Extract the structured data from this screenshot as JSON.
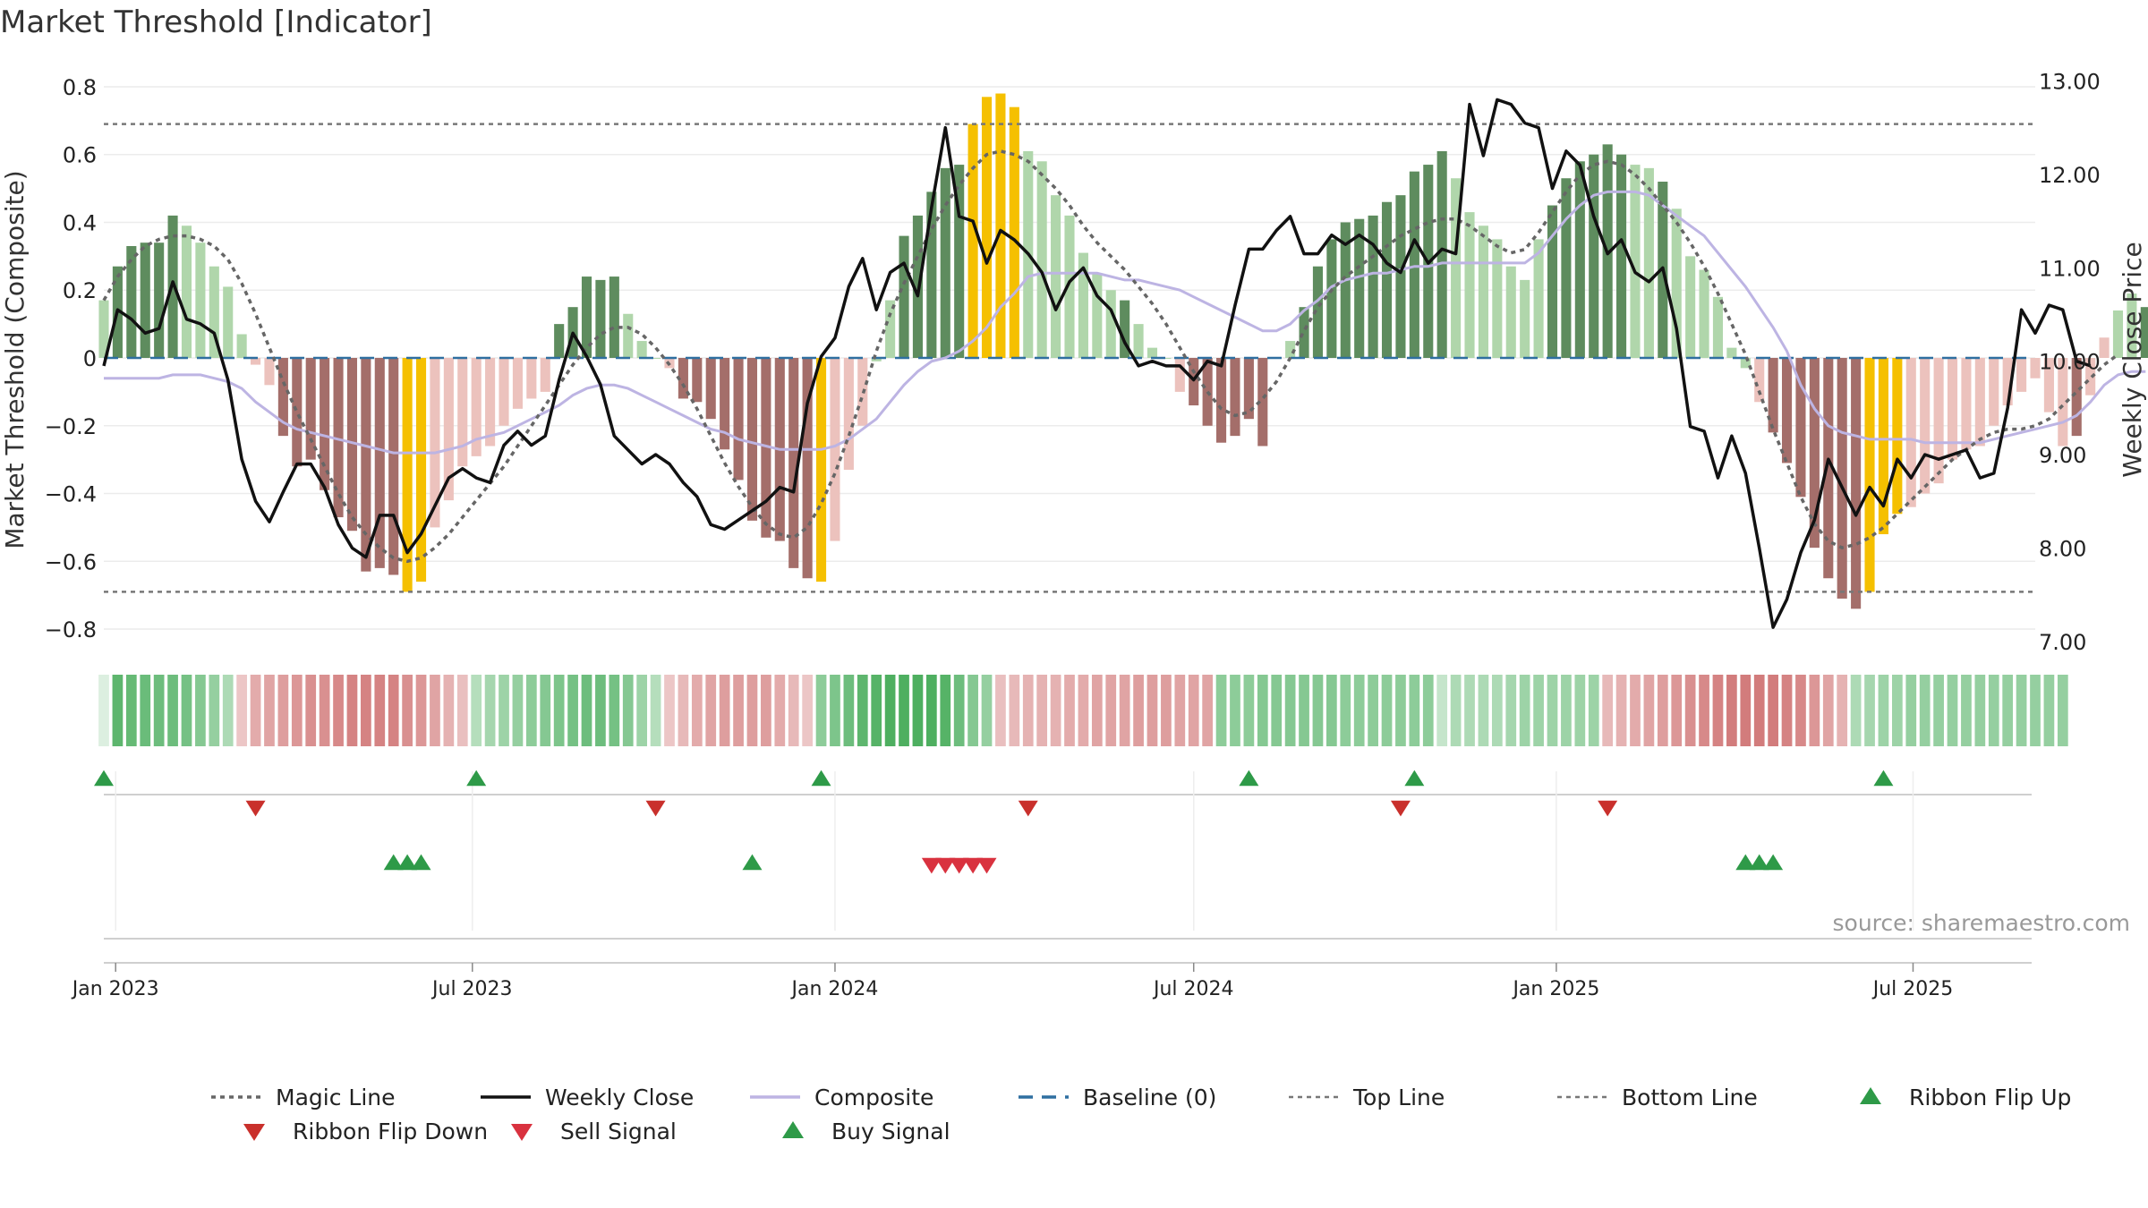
{
  "title": "Market Threshold [Indicator]",
  "source": "source: sharemaestro.com",
  "y_left_label": "Market Threshold (Composite)",
  "y_right_label": "Weekly Close Price",
  "colors": {
    "strong_up": "#5e8c5e",
    "weak_up": "#b0d6ab",
    "strong_down": "#a46e6a",
    "weak_down": "#ecc2bd",
    "extreme": "#f5c000",
    "close": "#111111",
    "composite": "#bdb4e3",
    "magic": "#666666",
    "baseline": "#2f6fa0",
    "thresholds": "#777777",
    "buy": "#2e9a48",
    "sell": "#d9323f",
    "flip_up": "#2e9a48",
    "flip_down": "#c9302c"
  },
  "chart_data": {
    "type": "bar+line",
    "x_start": "2022-12-26",
    "x_end": "2025-09-01",
    "x_ticks": [
      {
        "date": "2023-01-01",
        "label": "Jan 2023"
      },
      {
        "date": "2023-07-01",
        "label": "Jul 2023"
      },
      {
        "date": "2024-01-01",
        "label": "Jan 2024"
      },
      {
        "date": "2024-07-01",
        "label": "Jul 2024"
      },
      {
        "date": "2025-01-01",
        "label": "Jan 2025"
      },
      {
        "date": "2025-07-01",
        "label": "Jul 2025"
      }
    ],
    "y_left": {
      "min": -0.85,
      "max": 0.85,
      "ticks": [
        0.8,
        0.6,
        0.4,
        0.2,
        0,
        -0.2,
        -0.4,
        -0.6,
        -0.8
      ],
      "tick_labels": [
        "0.8",
        "0.6",
        "0.4",
        "0.2",
        "0",
        "−0.2",
        "−0.4",
        "−0.6",
        "−0.8"
      ]
    },
    "y_right": {
      "min": 6.95,
      "max": 13.12,
      "ticks": [
        13,
        12,
        11,
        10,
        9,
        8,
        7
      ],
      "tick_labels": [
        "13.00",
        "12.00",
        "11.00",
        "10.00",
        "9.00",
        "8.00",
        "7.00"
      ]
    },
    "top_line": 0.69,
    "bottom_line": -0.69,
    "baseline": 0,
    "bar_start": "2022-12-26",
    "composite": [
      0.17,
      0.27,
      0.33,
      0.34,
      0.34,
      0.42,
      0.39,
      0.34,
      0.27,
      0.21,
      0.07,
      -0.02,
      -0.08,
      -0.23,
      -0.32,
      -0.3,
      -0.39,
      -0.47,
      -0.51,
      -0.63,
      -0.62,
      -0.64,
      -0.69,
      -0.66,
      -0.5,
      -0.42,
      -0.32,
      -0.29,
      -0.26,
      -0.2,
      -0.15,
      -0.12,
      -0.1,
      0.1,
      0.15,
      0.24,
      0.23,
      0.24,
      0.13,
      0.05,
      0.0,
      -0.03,
      -0.12,
      -0.13,
      -0.18,
      -0.27,
      -0.36,
      -0.48,
      -0.53,
      -0.54,
      -0.62,
      -0.65,
      -0.66,
      -0.54,
      -0.33,
      -0.2,
      -0.01,
      0.17,
      0.36,
      0.42,
      0.49,
      0.56,
      0.57,
      0.69,
      0.77,
      0.78,
      0.74,
      0.61,
      0.58,
      0.48,
      0.42,
      0.31,
      0.25,
      0.2,
      0.17,
      0.1,
      0.03,
      0.0,
      -0.1,
      -0.14,
      -0.2,
      -0.25,
      -0.23,
      -0.18,
      -0.26,
      0.0,
      0.05,
      0.15,
      0.27,
      0.35,
      0.4,
      0.41,
      0.42,
      0.46,
      0.48,
      0.55,
      0.57,
      0.61,
      0.53,
      0.43,
      0.39,
      0.35,
      0.27,
      0.23,
      0.35,
      0.45,
      0.53,
      0.58,
      0.6,
      0.63,
      0.6,
      0.57,
      0.56,
      0.52,
      0.44,
      0.3,
      0.26,
      0.18,
      0.03,
      -0.03,
      -0.13,
      -0.22,
      -0.31,
      -0.41,
      -0.56,
      -0.65,
      -0.71,
      -0.74,
      -0.69,
      -0.52,
      -0.46,
      -0.44,
      -0.4,
      -0.37,
      -0.3,
      -0.27,
      -0.26,
      -0.2,
      -0.14,
      -0.1,
      -0.06,
      -0.16,
      -0.26,
      -0.23,
      -0.11,
      0.06,
      0.14,
      0.19,
      0.15,
      0.19
    ],
    "bar_class": [
      1,
      0,
      0,
      0,
      0,
      0,
      1,
      1,
      1,
      1,
      1,
      3,
      3,
      2,
      2,
      2,
      2,
      2,
      2,
      2,
      2,
      2,
      4,
      4,
      3,
      3,
      3,
      3,
      3,
      3,
      3,
      3,
      3,
      0,
      0,
      0,
      0,
      0,
      1,
      1,
      1,
      3,
      2,
      2,
      2,
      2,
      2,
      2,
      2,
      2,
      2,
      2,
      4,
      3,
      3,
      3,
      1,
      1,
      0,
      0,
      0,
      0,
      0,
      4,
      4,
      4,
      4,
      1,
      1,
      1,
      1,
      1,
      1,
      1,
      0,
      1,
      1,
      1,
      3,
      2,
      2,
      2,
      2,
      2,
      2,
      1,
      1,
      0,
      0,
      0,
      0,
      0,
      0,
      0,
      0,
      0,
      0,
      0,
      1,
      1,
      1,
      1,
      1,
      1,
      1,
      0,
      0,
      0,
      0,
      0,
      0,
      1,
      1,
      0,
      1,
      1,
      1,
      1,
      1,
      1,
      3,
      2,
      2,
      2,
      2,
      2,
      2,
      2,
      4,
      4,
      4,
      3,
      3,
      3,
      3,
      3,
      3,
      3,
      3,
      3,
      3,
      3,
      3,
      2,
      3,
      3,
      1,
      1,
      0,
      1,
      0
    ],
    "weekly_close": [
      9.95,
      10.55,
      10.45,
      10.3,
      10.35,
      10.85,
      10.45,
      10.4,
      10.3,
      9.8,
      8.95,
      8.5,
      8.28,
      8.6,
      8.9,
      8.9,
      8.65,
      8.25,
      8.0,
      7.9,
      8.35,
      8.35,
      7.95,
      8.15,
      8.45,
      8.75,
      8.85,
      8.75,
      8.7,
      9.1,
      9.25,
      9.1,
      9.2,
      9.8,
      10.3,
      10.05,
      9.75,
      9.2,
      9.05,
      8.9,
      9.0,
      8.9,
      8.7,
      8.55,
      8.25,
      8.2,
      8.3,
      8.4,
      8.5,
      8.65,
      8.6,
      9.55,
      10.05,
      10.25,
      10.8,
      11.1,
      10.55,
      10.95,
      11.05,
      10.7,
      11.65,
      12.5,
      11.55,
      11.5,
      11.05,
      11.4,
      11.3,
      11.15,
      10.95,
      10.55,
      10.85,
      11.0,
      10.7,
      10.55,
      10.2,
      9.95,
      10.0,
      9.95,
      9.95,
      9.8,
      10.0,
      9.95,
      10.6,
      11.2,
      11.2,
      11.4,
      11.55,
      11.15,
      11.15,
      11.35,
      11.25,
      11.35,
      11.25,
      11.05,
      10.95,
      11.3,
      11.05,
      11.2,
      11.15,
      12.75,
      12.2,
      12.8,
      12.75,
      12.55,
      12.5,
      11.85,
      12.25,
      12.1,
      11.55,
      11.15,
      11.3,
      10.95,
      10.85,
      11.0,
      10.35,
      9.3,
      9.25,
      8.75,
      9.2,
      8.8,
      8.0,
      7.15,
      7.45,
      7.95,
      8.3,
      8.95,
      8.65,
      8.35,
      8.65,
      8.45,
      8.95,
      8.75,
      9.0,
      8.95,
      9.0,
      9.05,
      8.75,
      8.8,
      9.5,
      10.55,
      10.3,
      10.6,
      10.55,
      10.0,
      9.95
    ],
    "composite_line": [
      -0.06,
      -0.06,
      -0.06,
      -0.06,
      -0.06,
      -0.05,
      -0.05,
      -0.05,
      -0.06,
      -0.07,
      -0.09,
      -0.13,
      -0.16,
      -0.19,
      -0.21,
      -0.22,
      -0.23,
      -0.24,
      -0.25,
      -0.26,
      -0.27,
      -0.28,
      -0.28,
      -0.28,
      -0.28,
      -0.27,
      -0.26,
      -0.24,
      -0.23,
      -0.22,
      -0.2,
      -0.18,
      -0.16,
      -0.14,
      -0.11,
      -0.09,
      -0.08,
      -0.08,
      -0.09,
      -0.11,
      -0.13,
      -0.15,
      -0.17,
      -0.19,
      -0.21,
      -0.22,
      -0.24,
      -0.25,
      -0.26,
      -0.27,
      -0.27,
      -0.27,
      -0.27,
      -0.26,
      -0.24,
      -0.21,
      -0.18,
      -0.13,
      -0.08,
      -0.04,
      -0.01,
      0.0,
      0.02,
      0.05,
      0.09,
      0.15,
      0.19,
      0.24,
      0.25,
      0.25,
      0.25,
      0.25,
      0.25,
      0.24,
      0.23,
      0.23,
      0.22,
      0.21,
      0.2,
      0.18,
      0.16,
      0.14,
      0.12,
      0.1,
      0.08,
      0.08,
      0.1,
      0.14,
      0.17,
      0.21,
      0.23,
      0.24,
      0.25,
      0.25,
      0.26,
      0.27,
      0.27,
      0.28,
      0.28,
      0.28,
      0.28,
      0.28,
      0.28,
      0.28,
      0.31,
      0.36,
      0.41,
      0.45,
      0.48,
      0.49,
      0.49,
      0.49,
      0.48,
      0.45,
      0.42,
      0.39,
      0.36,
      0.31,
      0.26,
      0.21,
      0.15,
      0.09,
      0.02,
      -0.08,
      -0.15,
      -0.2,
      -0.22,
      -0.23,
      -0.24,
      -0.24,
      -0.24,
      -0.24,
      -0.25,
      -0.25,
      -0.25,
      -0.25,
      -0.25,
      -0.24,
      -0.23,
      -0.22,
      -0.21,
      -0.2,
      -0.19,
      -0.17,
      -0.13,
      -0.08,
      -0.05,
      -0.04,
      -0.04
    ],
    "magic_line": [
      0.17,
      0.24,
      0.29,
      0.33,
      0.35,
      0.36,
      0.36,
      0.35,
      0.33,
      0.29,
      0.22,
      0.13,
      0.03,
      -0.07,
      -0.16,
      -0.24,
      -0.32,
      -0.4,
      -0.47,
      -0.52,
      -0.56,
      -0.59,
      -0.6,
      -0.59,
      -0.56,
      -0.52,
      -0.47,
      -0.42,
      -0.37,
      -0.32,
      -0.26,
      -0.2,
      -0.14,
      -0.08,
      -0.02,
      0.03,
      0.07,
      0.09,
      0.09,
      0.07,
      0.03,
      -0.02,
      -0.08,
      -0.15,
      -0.23,
      -0.31,
      -0.38,
      -0.44,
      -0.49,
      -0.52,
      -0.53,
      -0.5,
      -0.43,
      -0.34,
      -0.23,
      -0.11,
      0.02,
      0.13,
      0.22,
      0.3,
      0.38,
      0.45,
      0.51,
      0.56,
      0.6,
      0.61,
      0.6,
      0.58,
      0.54,
      0.5,
      0.45,
      0.39,
      0.34,
      0.3,
      0.26,
      0.21,
      0.16,
      0.1,
      0.03,
      -0.04,
      -0.1,
      -0.15,
      -0.17,
      -0.16,
      -0.12,
      -0.07,
      0.0,
      0.08,
      0.15,
      0.2,
      0.24,
      0.27,
      0.3,
      0.33,
      0.36,
      0.38,
      0.4,
      0.41,
      0.41,
      0.39,
      0.36,
      0.33,
      0.31,
      0.32,
      0.37,
      0.43,
      0.49,
      0.54,
      0.57,
      0.58,
      0.57,
      0.54,
      0.5,
      0.45,
      0.4,
      0.34,
      0.27,
      0.19,
      0.1,
      0.01,
      -0.1,
      -0.21,
      -0.31,
      -0.41,
      -0.49,
      -0.54,
      -0.56,
      -0.55,
      -0.53,
      -0.5,
      -0.46,
      -0.42,
      -0.38,
      -0.34,
      -0.3,
      -0.27,
      -0.24,
      -0.22,
      -0.21,
      -0.21,
      -0.2,
      -0.18,
      -0.14,
      -0.1,
      -0.06,
      -0.02,
      0.01
    ],
    "ribbon": [
      0.0,
      0.8,
      0.75,
      0.72,
      0.7,
      0.7,
      0.65,
      0.55,
      0.45,
      0.3,
      -0.2,
      -0.4,
      -0.45,
      -0.5,
      -0.55,
      -0.6,
      -0.6,
      -0.65,
      -0.7,
      -0.7,
      -0.7,
      -0.7,
      -0.6,
      -0.55,
      -0.45,
      -0.35,
      -0.25,
      0.25,
      0.35,
      0.4,
      0.45,
      0.5,
      0.55,
      0.6,
      0.65,
      0.7,
      0.7,
      0.65,
      0.55,
      0.4,
      0.25,
      -0.2,
      -0.3,
      -0.4,
      -0.45,
      -0.5,
      -0.5,
      -0.5,
      -0.5,
      -0.4,
      -0.3,
      -0.2,
      0.5,
      0.6,
      0.7,
      0.8,
      0.85,
      0.9,
      0.9,
      0.9,
      0.9,
      0.85,
      0.7,
      0.55,
      0.45,
      -0.25,
      -0.3,
      -0.35,
      -0.35,
      -0.35,
      -0.4,
      -0.4,
      -0.45,
      -0.45,
      -0.45,
      -0.5,
      -0.5,
      -0.5,
      -0.45,
      -0.45,
      -0.45,
      0.5,
      0.5,
      0.5,
      0.55,
      0.55,
      0.55,
      0.55,
      0.55,
      0.55,
      0.5,
      0.5,
      0.5,
      0.5,
      0.5,
      0.5,
      0.5,
      0.15,
      0.3,
      0.3,
      0.3,
      0.3,
      0.35,
      0.4,
      0.4,
      0.4,
      0.4,
      0.4,
      0.4,
      -0.3,
      -0.35,
      -0.4,
      -0.45,
      -0.5,
      -0.55,
      -0.6,
      -0.65,
      -0.7,
      -0.75,
      -0.75,
      -0.75,
      -0.75,
      -0.7,
      -0.65,
      -0.55,
      -0.45,
      -0.35,
      0.3,
      0.35,
      0.4,
      0.4,
      0.45,
      0.45,
      0.45,
      0.45,
      0.45,
      0.45,
      0.45,
      0.45,
      0.45,
      0.45,
      0.45,
      0.45
    ],
    "ribbon_flip_up": [
      "2022-12-26",
      "2023-07-03",
      "2023-12-25",
      "2024-07-29",
      "2024-10-21",
      "2025-06-16"
    ],
    "ribbon_flip_down": [
      "2023-03-13",
      "2023-10-02",
      "2024-04-08",
      "2024-10-14",
      "2025-01-27"
    ],
    "buy_signal": [
      "2023-05-22",
      "2023-05-29",
      "2023-06-05",
      "2023-11-20",
      "2025-04-07",
      "2025-04-14",
      "2025-04-21"
    ],
    "sell_signal": [
      "2024-02-19",
      "2024-02-26",
      "2024-03-04",
      "2024-03-11",
      "2024-03-18"
    ],
    "legend": [
      {
        "key": "magic",
        "label": "Magic Line",
        "style": "dotted"
      },
      {
        "key": "close",
        "label": "Weekly Close",
        "style": "solid"
      },
      {
        "key": "composite",
        "label": "Composite",
        "style": "solid"
      },
      {
        "key": "baseline",
        "label": "Baseline (0)",
        "style": "dashed"
      },
      {
        "key": "top",
        "label": "Top Line",
        "style": "dashed-grey"
      },
      {
        "key": "bottom",
        "label": "Bottom Line",
        "style": "dashed-grey"
      },
      {
        "key": "flip_up",
        "label": "Ribbon Flip Up",
        "style": "triangle-up"
      },
      {
        "key": "flip_down",
        "label": "Ribbon Flip Down",
        "style": "triangle-down"
      },
      {
        "key": "sell",
        "label": "Sell Signal",
        "style": "triangle-down"
      },
      {
        "key": "buy",
        "label": "Buy Signal",
        "style": "triangle-up"
      }
    ]
  }
}
